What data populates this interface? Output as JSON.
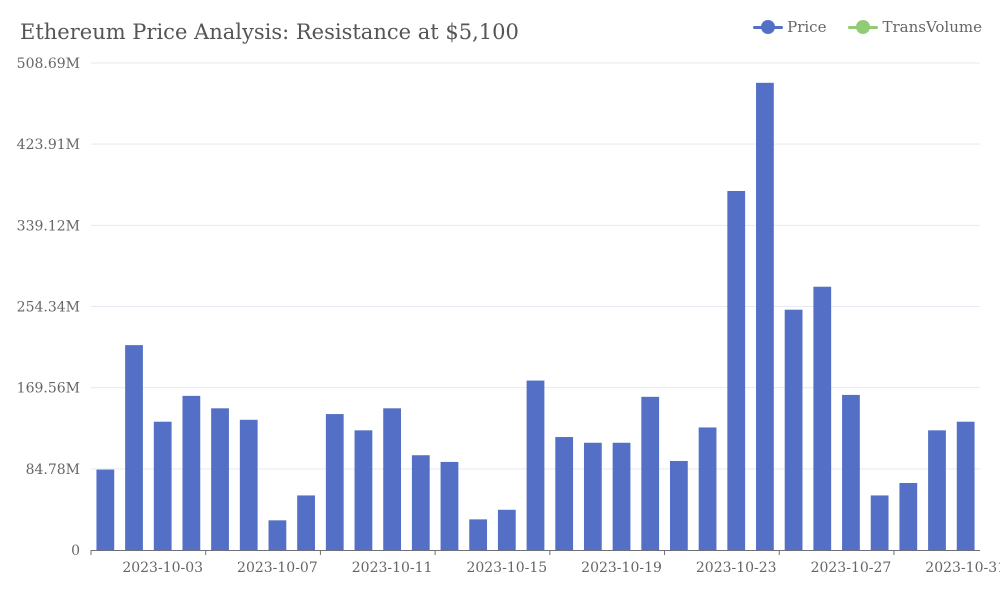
{
  "chart_data": {
    "type": "bar",
    "title": "Ethereum Price Analysis: Resistance at $5,100",
    "legend": [
      {
        "name": "Price",
        "color": "#5470c6"
      },
      {
        "name": "TransVolume",
        "color": "#91cc75"
      }
    ],
    "legend_position": "top-right",
    "grid": true,
    "y_ticks": [
      "0",
      "84.78M",
      "169.56M",
      "254.34M",
      "339.12M",
      "423.91M",
      "508.69M"
    ],
    "ylim": [
      0,
      508.69
    ],
    "y_unit": "M",
    "x_ticks": [
      "2023-10-03",
      "2023-10-07",
      "2023-10-11",
      "2023-10-15",
      "2023-10-19",
      "2023-10-23",
      "2023-10-27",
      "2023-10-31"
    ],
    "categories": [
      "2023-10-01",
      "2023-10-02",
      "2023-10-03",
      "2023-10-04",
      "2023-10-05",
      "2023-10-06",
      "2023-10-07",
      "2023-10-08",
      "2023-10-09",
      "2023-10-10",
      "2023-10-11",
      "2023-10-12",
      "2023-10-13",
      "2023-10-14",
      "2023-10-15",
      "2023-10-16",
      "2023-10-17",
      "2023-10-18",
      "2023-10-19",
      "2023-10-20",
      "2023-10-21",
      "2023-10-22",
      "2023-10-23",
      "2023-10-24",
      "2023-10-25",
      "2023-10-26",
      "2023-10-27",
      "2023-10-28",
      "2023-10-29",
      "2023-10-30",
      "2023-10-31"
    ],
    "series": [
      {
        "name": "TransVolume",
        "color": "#5470c6",
        "values": [
          84,
          214,
          134,
          161,
          148,
          136,
          31,
          57,
          142,
          125,
          148,
          99,
          92,
          32,
          42,
          177,
          118,
          112,
          112,
          160,
          93,
          128,
          375,
          488,
          251,
          275,
          162,
          57,
          70,
          125,
          134
        ]
      }
    ]
  }
}
